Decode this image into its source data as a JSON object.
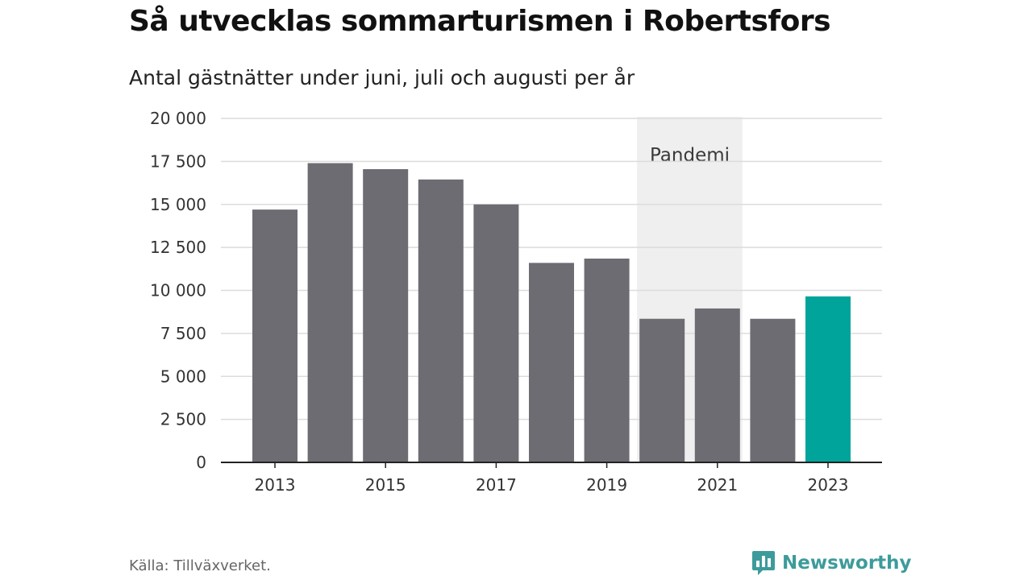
{
  "title": "Så utvecklas sommarturismen i Robertsfors",
  "subtitle": "Antal gästnätter under juni, juli och augusti per år",
  "source": "Källa: Tillväxverket.",
  "brand": {
    "name": "Newsworthy",
    "icon": "newsworthy-logo-icon",
    "color": "#3d9b9b"
  },
  "chart_data": {
    "type": "bar",
    "categories": [
      "2013",
      "2014",
      "2015",
      "2016",
      "2017",
      "2018",
      "2019",
      "2020",
      "2021",
      "2022",
      "2023"
    ],
    "values": [
      14700,
      17400,
      17050,
      16450,
      15000,
      11600,
      11850,
      8350,
      8950,
      8350,
      9650
    ],
    "x_tick_labels": [
      "2013",
      "2015",
      "2017",
      "2019",
      "2021",
      "2023"
    ],
    "y_ticks": [
      0,
      2500,
      5000,
      7500,
      10000,
      12500,
      15000,
      17500,
      20000
    ],
    "y_tick_labels": [
      "0",
      "2 500",
      "5 000",
      "7 500",
      "10 000",
      "12 500",
      "15 000",
      "17 500",
      "20 000"
    ],
    "ylim": [
      0,
      20000
    ],
    "xlabel": "",
    "ylabel": "",
    "grid": true,
    "bar_color": "#6d6c73",
    "highlight_color": "#00a49a",
    "highlight_category": "2023",
    "annotation": {
      "label": "Pandemi",
      "from": "2020",
      "to": "2021",
      "color": "#efefef"
    }
  }
}
